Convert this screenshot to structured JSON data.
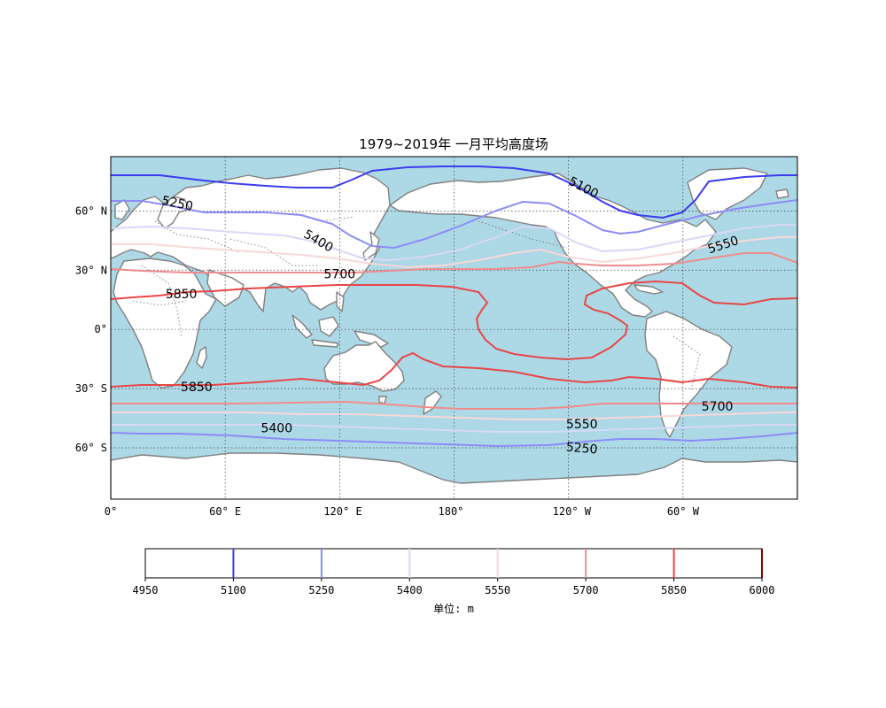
{
  "title": "1979~2019年    一月平均高度场",
  "map": {
    "ocean_color": "#add8e6",
    "land_color": "#ffffff",
    "coast_color": "#808080",
    "lat_ticks": [
      {
        "lat": 60,
        "label": "60° N"
      },
      {
        "lat": 30,
        "label": "30° N"
      },
      {
        "lat": 0,
        "label": "0°"
      },
      {
        "lat": -30,
        "label": "30° S"
      },
      {
        "lat": -60,
        "label": "60° S"
      }
    ],
    "lon_ticks": [
      {
        "lon": 0,
        "label": "0°"
      },
      {
        "lon": 60,
        "label": "60° E"
      },
      {
        "lon": 120,
        "label": "120° E"
      },
      {
        "lon": 180,
        "label": "180°"
      },
      {
        "lon": 240,
        "label": "120° W"
      },
      {
        "lon": 300,
        "label": "60° W"
      }
    ]
  },
  "contours": {
    "levels": [
      5100,
      5250,
      5400,
      5550,
      5700,
      5850
    ],
    "colors": {
      "5100": "#3c3cf0",
      "5250": "#8c8cf8",
      "5400": "#d8d8f8",
      "5550": "#f8d8d8",
      "5700": "#f08c8c",
      "5850": "#e84646"
    },
    "labels": [
      {
        "text": "5250",
        "lon": 35,
        "lat": 64,
        "angle": 12
      },
      {
        "text": "5100",
        "lon": 248,
        "lat": 72,
        "angle": 28
      },
      {
        "text": "5400",
        "lon": 109,
        "lat": 45,
        "angle": 30
      },
      {
        "text": "5550",
        "lon": 321,
        "lat": 43,
        "angle": -18
      },
      {
        "text": "5700",
        "lon": 120,
        "lat": 28,
        "angle": 0
      },
      {
        "text": "5850",
        "lon": 37,
        "lat": 18,
        "angle": 0
      },
      {
        "text": "5850",
        "lon": 45,
        "lat": -29,
        "angle": 0
      },
      {
        "text": "5400",
        "lon": 87,
        "lat": -50,
        "angle": 0
      },
      {
        "text": "5550",
        "lon": 247,
        "lat": -48,
        "angle": 0
      },
      {
        "text": "5700",
        "lon": 318,
        "lat": -39,
        "angle": 0
      },
      {
        "text": "5250",
        "lon": 247,
        "lat": -60,
        "angle": 5
      }
    ]
  },
  "colorbar": {
    "min": 4950,
    "max": 6000,
    "ticks": [
      "4950",
      "5100",
      "5250",
      "5400",
      "5550",
      "5700",
      "5850",
      "6000"
    ],
    "lines": [
      {
        "value": 5100,
        "color": "#3c3cf0"
      },
      {
        "value": 5250,
        "color": "#8c8cf8"
      },
      {
        "value": 5400,
        "color": "#d8d8f8"
      },
      {
        "value": 5550,
        "color": "#f8d8d8"
      },
      {
        "value": 5700,
        "color": "#f08c8c"
      },
      {
        "value": 5850,
        "color": "#e84646"
      },
      {
        "value": 6000,
        "color": "#8b0000"
      }
    ],
    "label": "单位: m"
  }
}
